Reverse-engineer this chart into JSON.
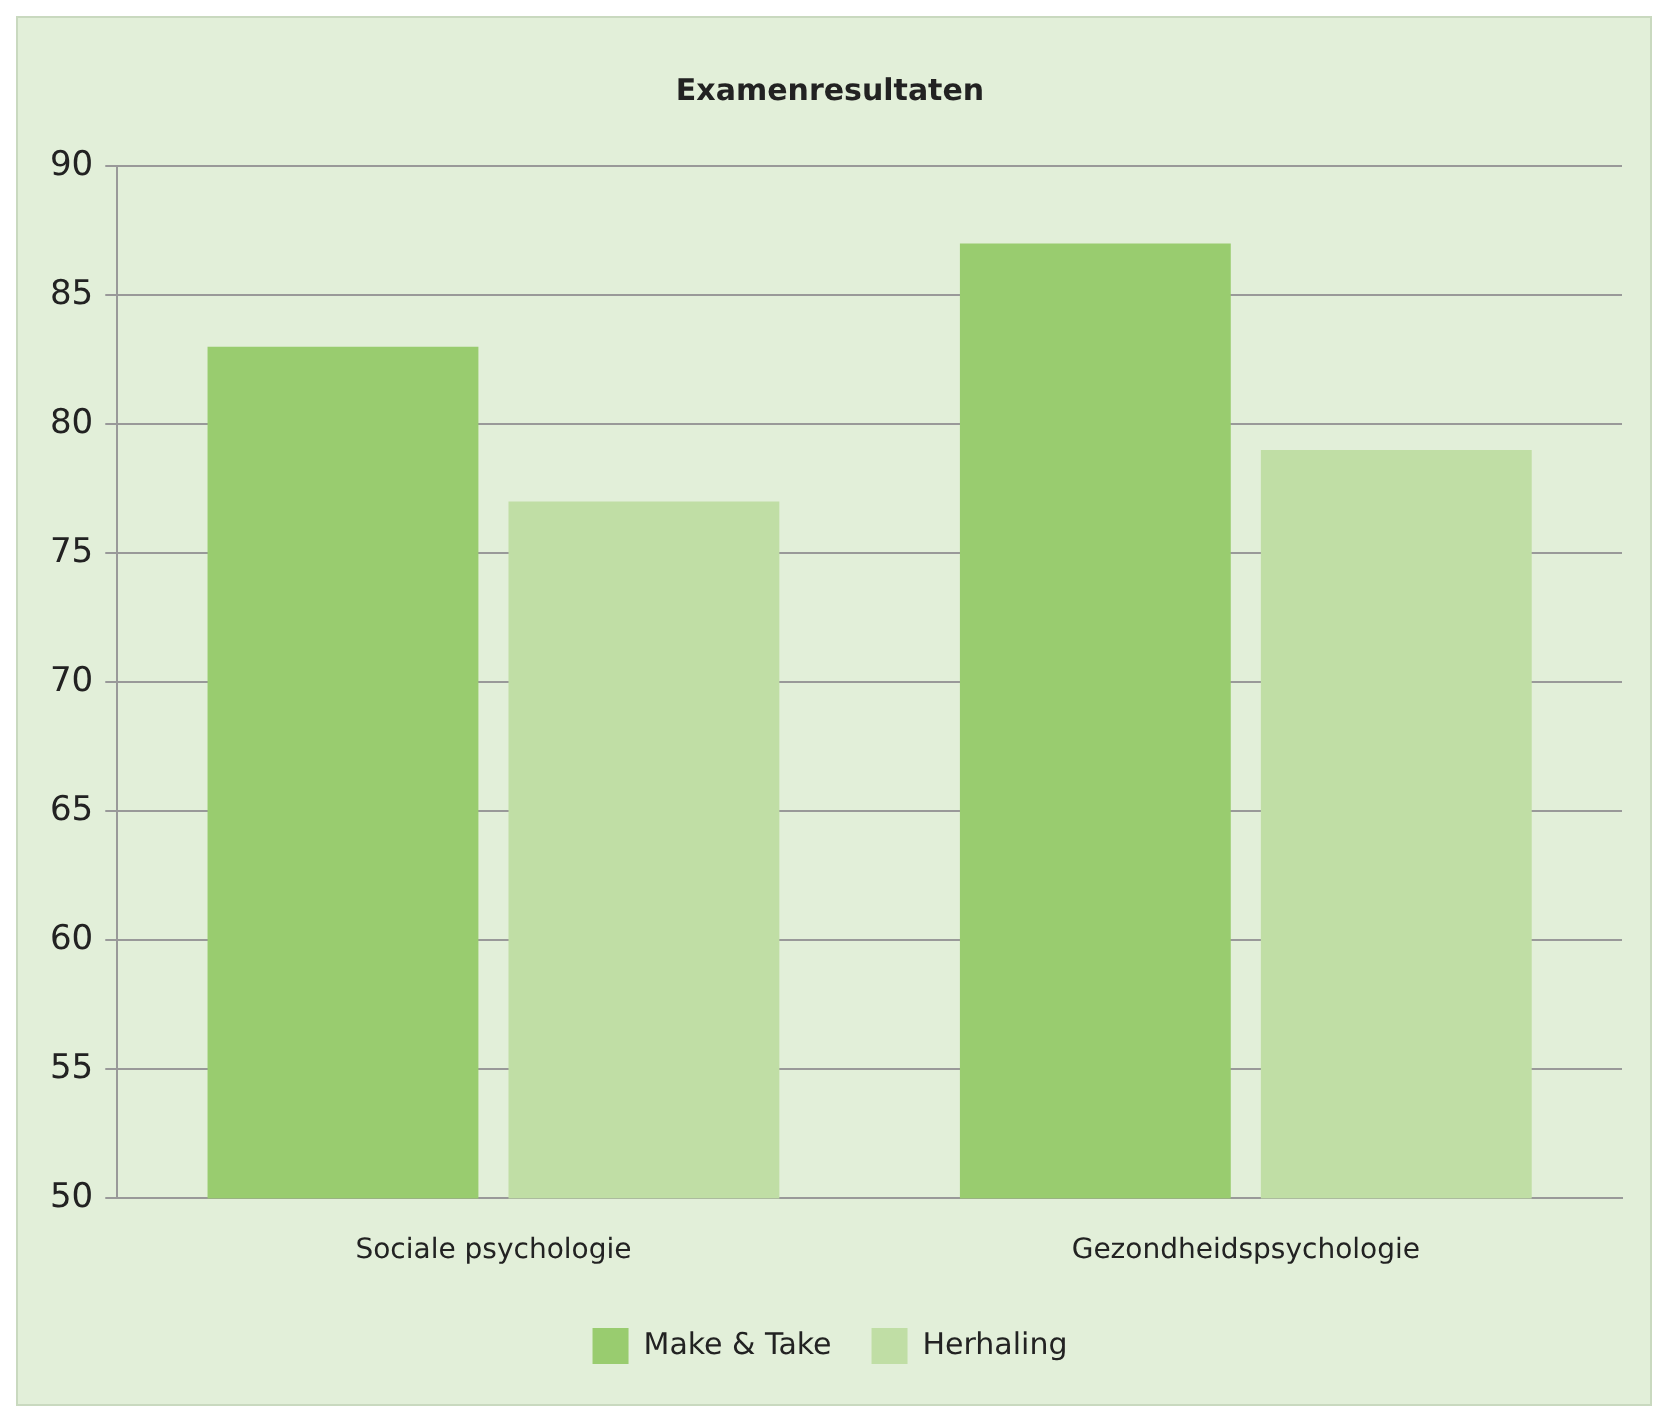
{
  "chart_data": {
    "type": "bar",
    "title": "Examenresultaten",
    "categories": [
      "Sociale psychologie",
      "Gezondheidspsychologie"
    ],
    "series": [
      {
        "name": "Make & Take",
        "color": "#99cc6f",
        "values": [
          83,
          87
        ]
      },
      {
        "name": "Herhaling",
        "color": "#c0dea5",
        "values": [
          77,
          79
        ]
      }
    ],
    "ylim": [
      50,
      90
    ],
    "yticks": [
      50,
      55,
      60,
      65,
      70,
      75,
      80,
      85,
      90
    ],
    "grid": "y",
    "legend": "bottom"
  }
}
